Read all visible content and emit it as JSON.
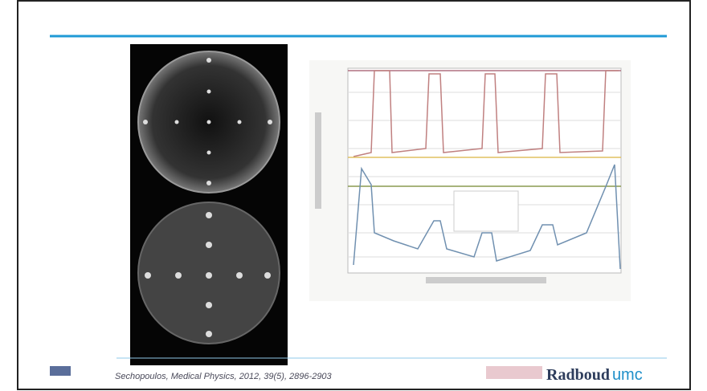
{
  "footer": {
    "citation": "Sechopoulos, Medical Physics, 2012, 39(5), 2896-2903",
    "brand": "Radboud",
    "brand_suffix": "umc"
  }
}
